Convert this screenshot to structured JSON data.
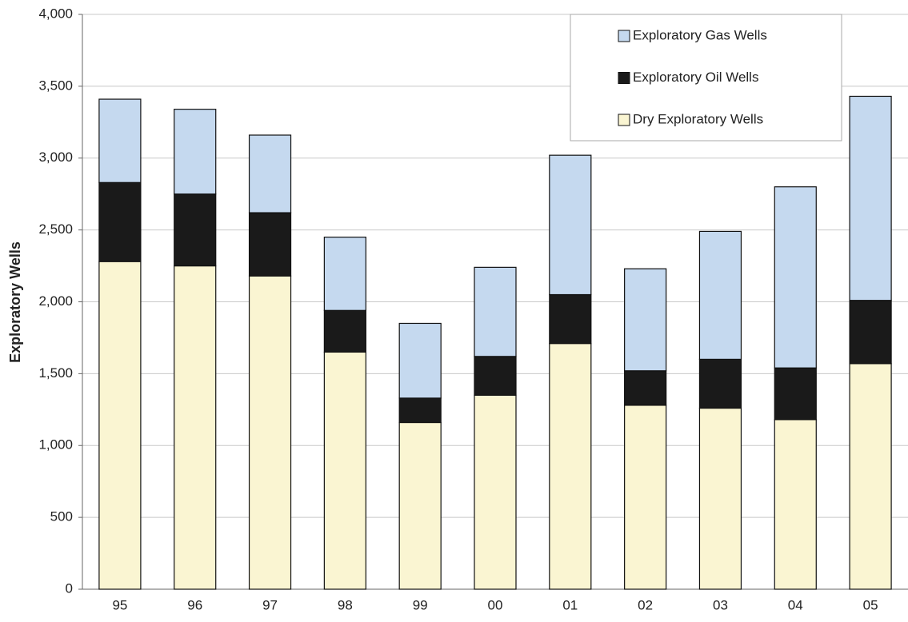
{
  "chart_data": {
    "type": "stacked_bar",
    "y_label": "Exploratory Wells",
    "categories": [
      "95",
      "96",
      "97",
      "98",
      "99",
      "00",
      "01",
      "02",
      "03",
      "04",
      "05"
    ],
    "series": [
      {
        "name": "Dry Exploratory Wells",
        "color": "#faf5d2",
        "values": [
          2280,
          2250,
          2180,
          1650,
          1160,
          1350,
          1710,
          1280,
          1260,
          1180,
          1570
        ]
      },
      {
        "name": "Exploratory Oil Wells",
        "color": "#1a1a1a",
        "values": [
          550,
          500,
          440,
          290,
          170,
          270,
          340,
          240,
          340,
          360,
          440
        ]
      },
      {
        "name": "Exploratory Gas Wells",
        "color": "#c5d9ef",
        "values": [
          580,
          590,
          540,
          510,
          520,
          620,
          970,
          710,
          890,
          1260,
          1420
        ]
      }
    ],
    "ylim": [
      0,
      4000
    ],
    "yticks": [
      0,
      500,
      {
        "value": 1000,
        "label": "1,000"
      },
      {
        "value": 1500,
        "label": "1,500"
      },
      {
        "value": 2000,
        "label": "2,000"
      },
      {
        "value": 2500,
        "label": "2,500"
      },
      {
        "value": 3000,
        "label": "3,000"
      },
      {
        "value": 3500,
        "label": "3,500"
      },
      {
        "value": 4000,
        "label": "4,000"
      }
    ],
    "grid": true,
    "legend": "top-right"
  }
}
